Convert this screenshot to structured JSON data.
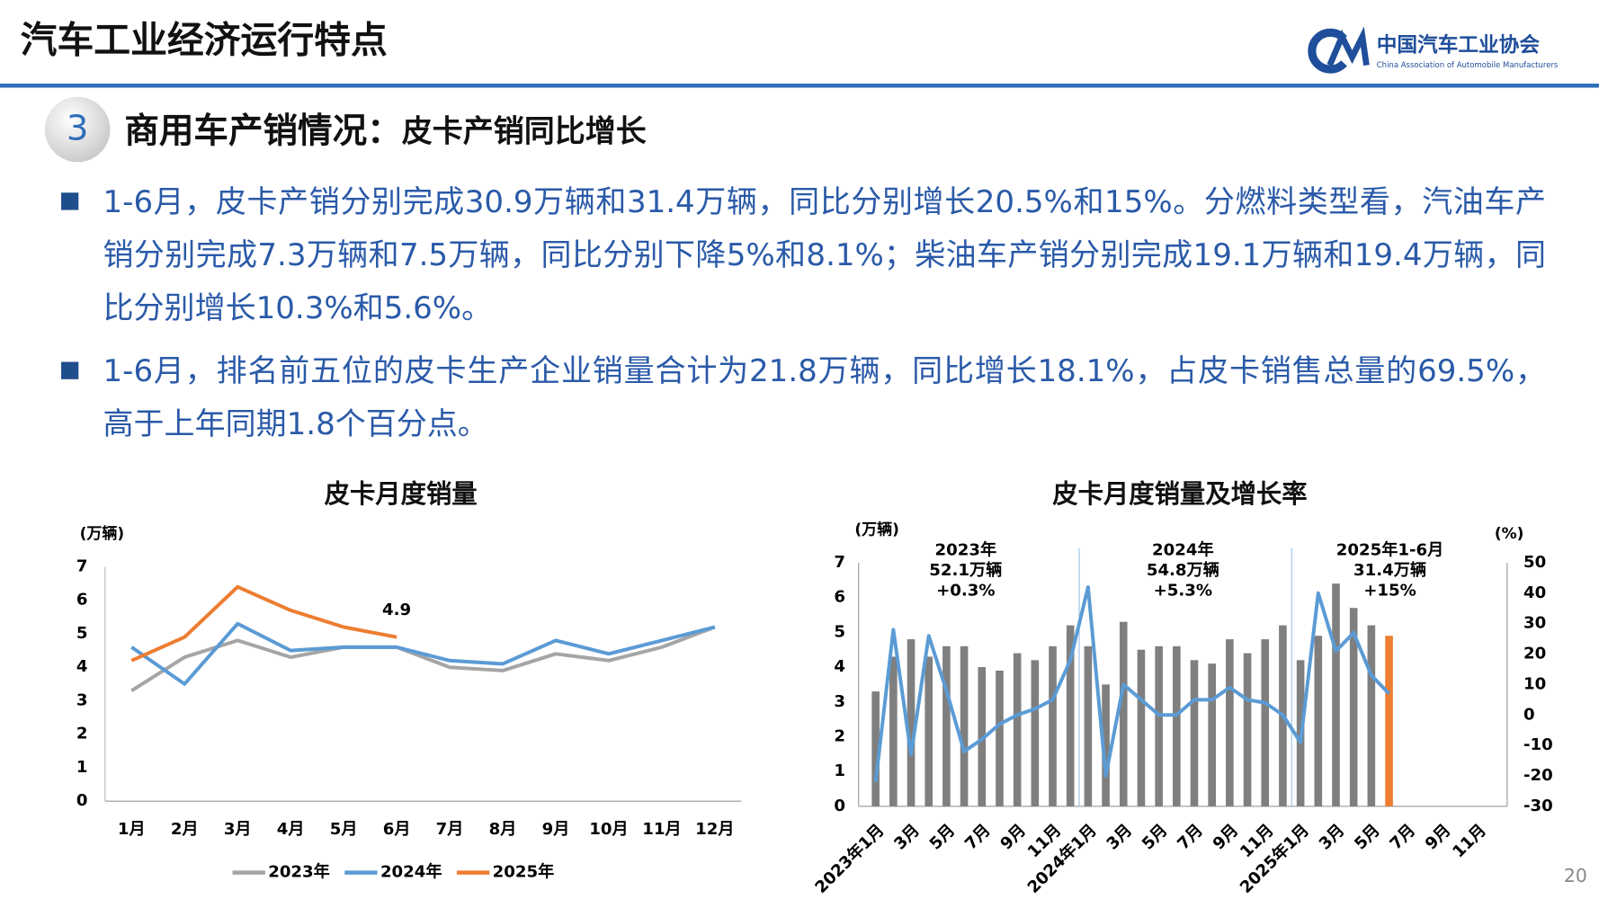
{
  "header": {
    "title": "汽车工业经济运行特点",
    "logo_cn": "中国汽车工业协会",
    "logo_en": "China Association of Automobile Manufacturers"
  },
  "section": {
    "number": "3",
    "heading": "商用车产销情况：",
    "subheading": "皮卡产销同比增长"
  },
  "bullets": [
    "1-6月，皮卡产销分别完成30.9万辆和31.4万辆，同比分别增长20.5%和15%。分燃料类型看，汽油车产销分别完成7.3万辆和7.5万辆，同比分别下降5%和8.1%；柴油车产销分别完成19.1万辆和19.4万辆，同比分别增长10.3%和5.6%。",
    "1-6月，排名前五位的皮卡生产企业销量合计为21.8万辆，同比增长18.1%，占皮卡销售总量的69.5%，高于上年同期1.8个百分点。"
  ],
  "page_number": "20",
  "chart_data": [
    {
      "type": "line",
      "title": "皮卡月度销量",
      "y_label": "(万辆)",
      "categories": [
        "1月",
        "2月",
        "3月",
        "4月",
        "5月",
        "6月",
        "7月",
        "8月",
        "9月",
        "10月",
        "11月",
        "12月"
      ],
      "series": [
        {
          "name": "2023年",
          "color": "#a5a5a5",
          "values": [
            3.3,
            4.3,
            4.8,
            4.3,
            4.6,
            4.6,
            4.0,
            3.9,
            4.4,
            4.2,
            4.6,
            5.2
          ]
        },
        {
          "name": "2024年",
          "color": "#5b9bd5",
          "values": [
            4.6,
            3.5,
            5.3,
            4.5,
            4.6,
            4.6,
            4.2,
            4.1,
            4.8,
            4.4,
            4.8,
            5.2
          ]
        },
        {
          "name": "2025年",
          "color": "#ed7d31",
          "values": [
            4.2,
            4.9,
            6.4,
            5.7,
            5.2,
            4.9,
            null,
            null,
            null,
            null,
            null,
            null
          ],
          "value_labels": [
            null,
            null,
            null,
            null,
            null,
            "4.9",
            null,
            null,
            null,
            null,
            null,
            null
          ]
        }
      ],
      "ylim": [
        0,
        7
      ],
      "yticks": [
        0,
        1,
        2,
        3,
        4,
        5,
        6,
        7
      ],
      "legend": "bottom"
    },
    {
      "type": "combo",
      "title": "皮卡月度销量及增长率",
      "y_label": "(万辆)",
      "y2_label": "(%)",
      "categories": [
        "2023年1月",
        null,
        "3月",
        null,
        "5月",
        null,
        "7月",
        null,
        "9月",
        null,
        "11月",
        null,
        "2024年1月",
        null,
        "3月",
        null,
        "5月",
        null,
        "7月",
        null,
        "9月",
        null,
        "11月",
        null,
        "2025年1月",
        null,
        "3月",
        null,
        "5月",
        null,
        "7月",
        null,
        "9月",
        null,
        "11月",
        null
      ],
      "series": [
        {
          "type": "bar",
          "color": "#7f7f7f",
          "colors": [
            "#7f7f7f",
            "#7f7f7f",
            "#7f7f7f",
            "#7f7f7f",
            "#7f7f7f",
            "#7f7f7f",
            "#7f7f7f",
            "#7f7f7f",
            "#7f7f7f",
            "#7f7f7f",
            "#7f7f7f",
            "#7f7f7f",
            "#7f7f7f",
            "#7f7f7f",
            "#7f7f7f",
            "#7f7f7f",
            "#7f7f7f",
            "#7f7f7f",
            "#7f7f7f",
            "#7f7f7f",
            "#7f7f7f",
            "#7f7f7f",
            "#7f7f7f",
            "#7f7f7f",
            "#7f7f7f",
            "#7f7f7f",
            "#7f7f7f",
            "#7f7f7f",
            "#7f7f7f",
            "#ed7d31",
            null,
            null,
            null,
            null,
            null,
            null
          ],
          "values": [
            3.3,
            4.3,
            4.8,
            4.3,
            4.6,
            4.6,
            4.0,
            3.9,
            4.4,
            4.2,
            4.6,
            5.2,
            4.6,
            3.5,
            5.3,
            4.5,
            4.6,
            4.6,
            4.2,
            4.1,
            4.8,
            4.4,
            4.8,
            5.2,
            4.2,
            4.9,
            6.4,
            5.7,
            5.2,
            4.9,
            null,
            null,
            null,
            null,
            null,
            null
          ]
        },
        {
          "type": "line",
          "color": "#5b9bd5",
          "axis": "y2",
          "values": [
            -22,
            28,
            -13,
            26,
            8,
            -12,
            -8,
            -3,
            0,
            2,
            5,
            18,
            42,
            -20,
            10,
            5,
            0,
            0,
            5,
            5,
            9,
            5,
            4,
            0,
            -9,
            40,
            21,
            27,
            13,
            7,
            null,
            null,
            null,
            null,
            null,
            null
          ]
        }
      ],
      "ylim": [
        0,
        7
      ],
      "yticks": [
        0,
        1,
        2,
        3,
        4,
        5,
        6,
        7
      ],
      "y2lim": [
        -30,
        50
      ],
      "y2ticks": [
        -30,
        -20,
        -10,
        0,
        10,
        20,
        30,
        40,
        50
      ],
      "annotations": [
        [
          "2023年",
          "52.1万辆",
          "+0.3%"
        ],
        [
          "2024年",
          "54.8万辆",
          "+5.3%"
        ],
        [
          "2025年1-6月",
          "31.4万辆",
          "+15%"
        ]
      ]
    }
  ]
}
